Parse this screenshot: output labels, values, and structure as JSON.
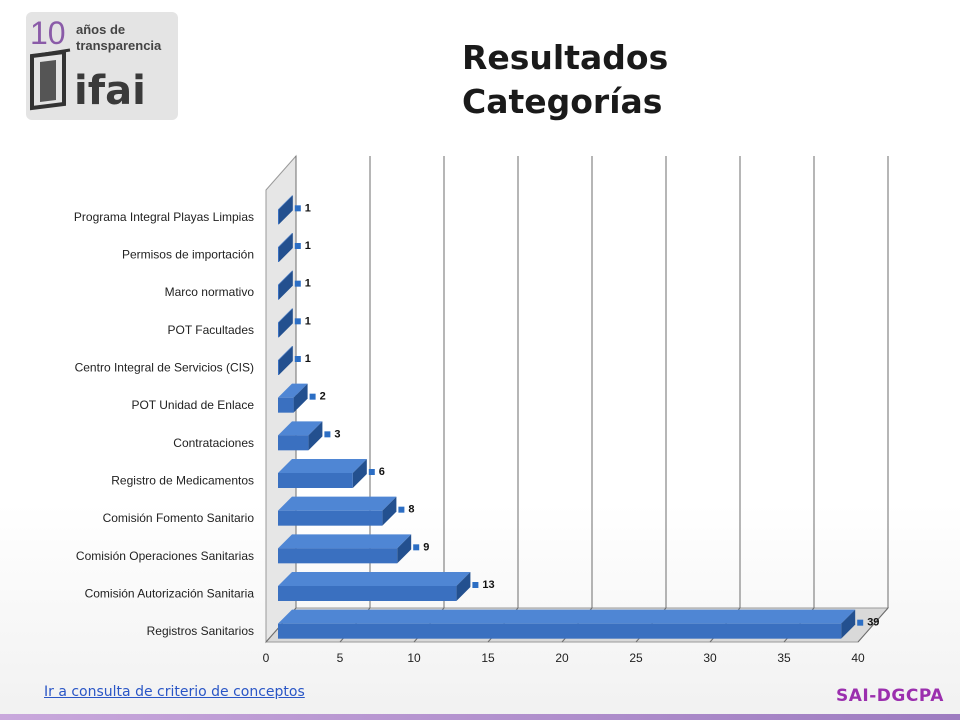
{
  "logo": {
    "number": "10",
    "line1": "años de",
    "line2": "transparencia",
    "brand": "ifai"
  },
  "title": {
    "line1": "Resultados",
    "line2": "Categorías"
  },
  "link": {
    "label": "Ir a consulta de criterio de conceptos"
  },
  "badge": {
    "label": "SAI-DGCPA"
  },
  "colors": {
    "bar_front": "#3a70c0",
    "bar_top": "#4f86d4",
    "bar_side": "#23508f",
    "grid": "#6d6d6d",
    "marker": "#2c6ec4",
    "badge": "#9b2fae",
    "link": "#2a56c6"
  },
  "chart_data": {
    "type": "bar",
    "orientation": "horizontal",
    "three_d": true,
    "categories": [
      "Programa Integral Playas Limpias",
      "Permisos de importación",
      "Marco normativo",
      "POT Facultades",
      "Centro Integral de Servicios (CIS)",
      "POT Unidad de Enlace",
      "Contrataciones",
      "Registro de Medicamentos",
      "Comisión Fomento Sanitario",
      "Comisión Operaciones Sanitarias",
      "Comisión Autorización Sanitaria",
      "Registros Sanitarios"
    ],
    "values": [
      1,
      1,
      1,
      1,
      1,
      2,
      3,
      6,
      8,
      9,
      13,
      39
    ],
    "data_labels": [
      "1",
      "1",
      "1",
      "1",
      "1",
      "2",
      "3",
      "6",
      "8",
      "9",
      "13",
      "39"
    ],
    "xlim": [
      0,
      40
    ],
    "x_ticks": [
      "0",
      "5",
      "10",
      "15",
      "20",
      "25",
      "30",
      "35",
      "40"
    ],
    "grid": true,
    "legend": "none"
  }
}
